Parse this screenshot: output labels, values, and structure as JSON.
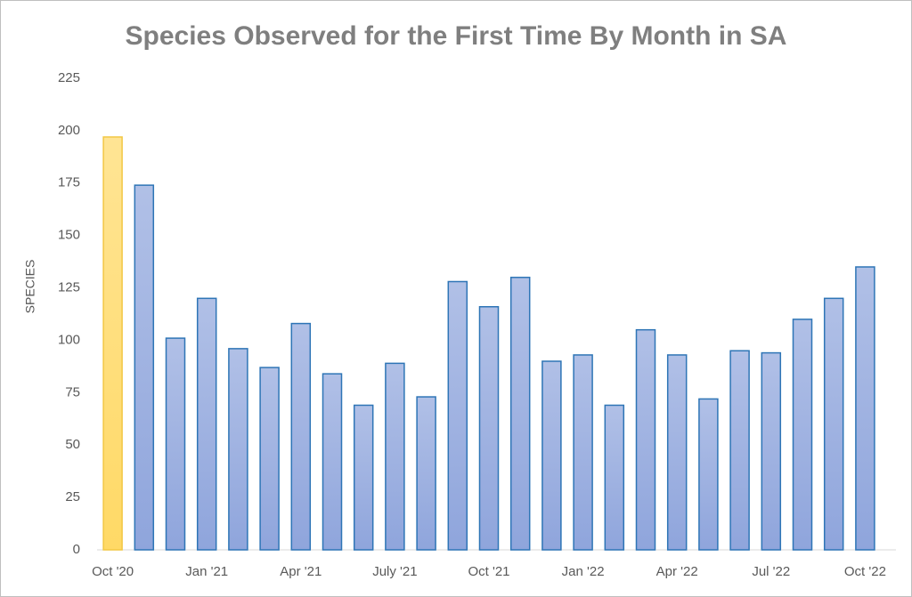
{
  "chart_data": {
    "type": "bar",
    "title": "Species Observed for the First Time By Month in SA",
    "y_label": "SPECIES",
    "categories": [
      "Oct '20",
      null,
      null,
      "Jan '21",
      null,
      null,
      "Apr '21",
      null,
      null,
      "July '21",
      null,
      null,
      "Oct '21",
      null,
      null,
      "Jan '22",
      null,
      null,
      "Apr '22",
      null,
      null,
      "Jul '22",
      null,
      null,
      "Oct '22"
    ],
    "values": [
      197,
      174,
      101,
      120,
      96,
      87,
      108,
      84,
      69,
      89,
      73,
      128,
      116,
      130,
      90,
      93,
      69,
      105,
      93,
      72,
      95,
      94,
      110,
      120,
      135
    ],
    "colors": [
      "#ffd966",
      "#8fa5dc",
      "#8fa5dc",
      "#8fa5dc",
      "#8fa5dc",
      "#8fa5dc",
      "#8fa5dc",
      "#8fa5dc",
      "#8fa5dc",
      "#8fa5dc",
      "#8fa5dc",
      "#8fa5dc",
      "#8fa5dc",
      "#8fa5dc",
      "#8fa5dc",
      "#8fa5dc",
      "#8fa5dc",
      "#8fa5dc",
      "#8fa5dc",
      "#8fa5dc",
      "#8fa5dc",
      "#8fa5dc",
      "#8fa5dc",
      "#8fa5dc",
      "#8fa5dc"
    ],
    "edge_colors": [
      "#f2c744",
      "#2e75b6",
      "#2e75b6",
      "#2e75b6",
      "#2e75b6",
      "#2e75b6",
      "#2e75b6",
      "#2e75b6",
      "#2e75b6",
      "#2e75b6",
      "#2e75b6",
      "#2e75b6",
      "#2e75b6",
      "#2e75b6",
      "#2e75b6",
      "#2e75b6",
      "#2e75b6",
      "#2e75b6",
      "#2e75b6",
      "#2e75b6",
      "#2e75b6",
      "#2e75b6",
      "#2e75b6",
      "#2e75b6",
      "#2e75b6"
    ],
    "ylim": [
      0,
      225
    ],
    "yticks": [
      0,
      25,
      50,
      75,
      100,
      125,
      150,
      175,
      200,
      225
    ],
    "grid": false
  }
}
